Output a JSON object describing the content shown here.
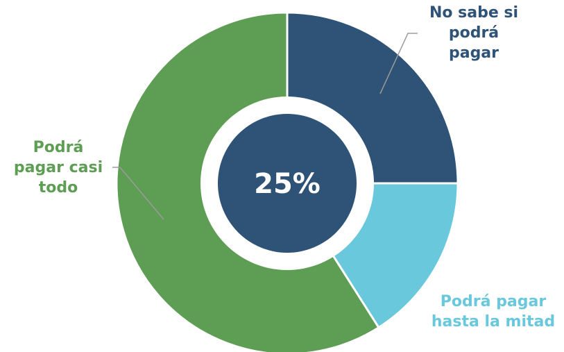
{
  "chart_data": {
    "type": "pie",
    "style": "donut",
    "center_label": "25%",
    "center_color": "#2e5377",
    "slices": [
      {
        "label": "No sabe si\npodrá\npagar",
        "value": 25,
        "color": "#2e5377"
      },
      {
        "label": "Podrá pagar\nhasta la mitad",
        "value": 16,
        "color": "#69c8dc"
      },
      {
        "label": "Podrá\npagar casi\ntodo",
        "value": 59,
        "color": "#5e9e54"
      }
    ],
    "start_angle_deg": 0,
    "direction": "clockwise",
    "leader_line_color": "#9b9b9b"
  }
}
